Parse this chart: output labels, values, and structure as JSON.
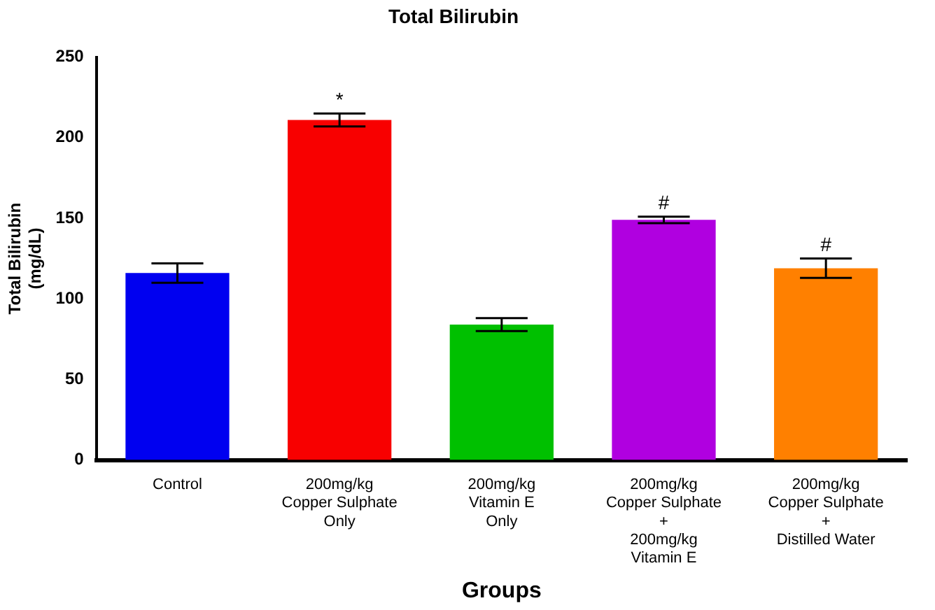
{
  "chart_data": {
    "type": "bar",
    "title": "Total Bilirubin",
    "xlabel": "Groups",
    "ylabel": "Total Bilirubin\n(mg/dL)",
    "categories": [
      "Control",
      "200mg/kg\nCopper Sulphate\nOnly",
      "200mg/kg\nVitamin E\nOnly",
      "200mg/kg\nCopper Sulphate\n+\n200mg/kg\nVitamin E",
      "200mg/kg\nCopper Sulphate\n+\nDistilled Water"
    ],
    "values": [
      116,
      211,
      84,
      149,
      119
    ],
    "colors": [
      "#0000f0",
      "#f80000",
      "#00c000",
      "#b000e0",
      "#ff8000"
    ],
    "errors": [
      6,
      4,
      4,
      2,
      6
    ],
    "ylim": [
      0,
      250
    ],
    "yticks": [
      0,
      50,
      100,
      150,
      200,
      250
    ],
    "grid": false,
    "legend": false,
    "annotations": [
      {
        "text": "*",
        "x": "200mg/kg\nCopper Sulphate\nOnly",
        "y": 215
      },
      {
        "text": "#",
        "x": "200mg/kg\nCopper Sulphate\n+\n200mg/kg\nVitamin E",
        "y": 151
      },
      {
        "text": "#",
        "x": "200mg/kg\nCopper Sulphate\n+\nDistilled Water",
        "y": 125
      }
    ]
  }
}
